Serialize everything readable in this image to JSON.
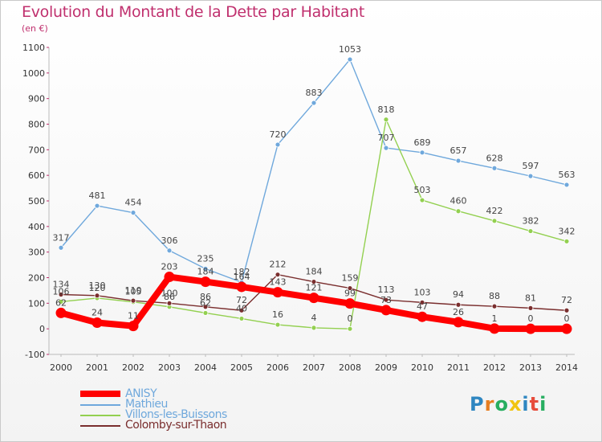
{
  "title": "Evolution du Montant de la Dette par Habitant",
  "unit": "(en €)",
  "logo": {
    "text": "Proxiti",
    "colors": [
      "#2e86c1",
      "#e67e22",
      "#27ae60",
      "#f1c40f",
      "#2e86c1",
      "#e74c3c",
      "#27ae60"
    ]
  },
  "chart_data": {
    "type": "line",
    "x": [
      2000,
      2001,
      2002,
      2003,
      2004,
      2005,
      2006,
      2007,
      2008,
      2009,
      2010,
      2011,
      2012,
      2013,
      2014
    ],
    "ylim": [
      -100,
      1100
    ],
    "yticks": [
      -100,
      0,
      100,
      200,
      300,
      400,
      500,
      600,
      700,
      800,
      900,
      1000,
      1100
    ],
    "grid": false,
    "legend_position": "bottom-left",
    "series": [
      {
        "name": "ANISY",
        "color": "#ff0000",
        "values": [
          62,
          24,
          11,
          203,
          184,
          164,
          143,
          121,
          99,
          73,
          47,
          26,
          1,
          0,
          0
        ]
      },
      {
        "name": "Mathieu",
        "color": "#6fa8dc",
        "values": [
          317,
          481,
          454,
          306,
          235,
          182,
          720,
          883,
          1053,
          707,
          689,
          657,
          628,
          597,
          563
        ]
      },
      {
        "name": "Villons-les-Buissons",
        "color": "#93d050",
        "values": [
          106,
          120,
          105,
          86,
          62,
          40,
          16,
          4,
          0,
          818,
          503,
          460,
          422,
          382,
          342
        ]
      },
      {
        "name": "Colomby-sur-Thaon",
        "color": "#7a2e2e",
        "values": [
          134,
          130,
          110,
          100,
          86,
          72,
          212,
          184,
          159,
          113,
          103,
          94,
          88,
          81,
          72
        ]
      }
    ]
  }
}
